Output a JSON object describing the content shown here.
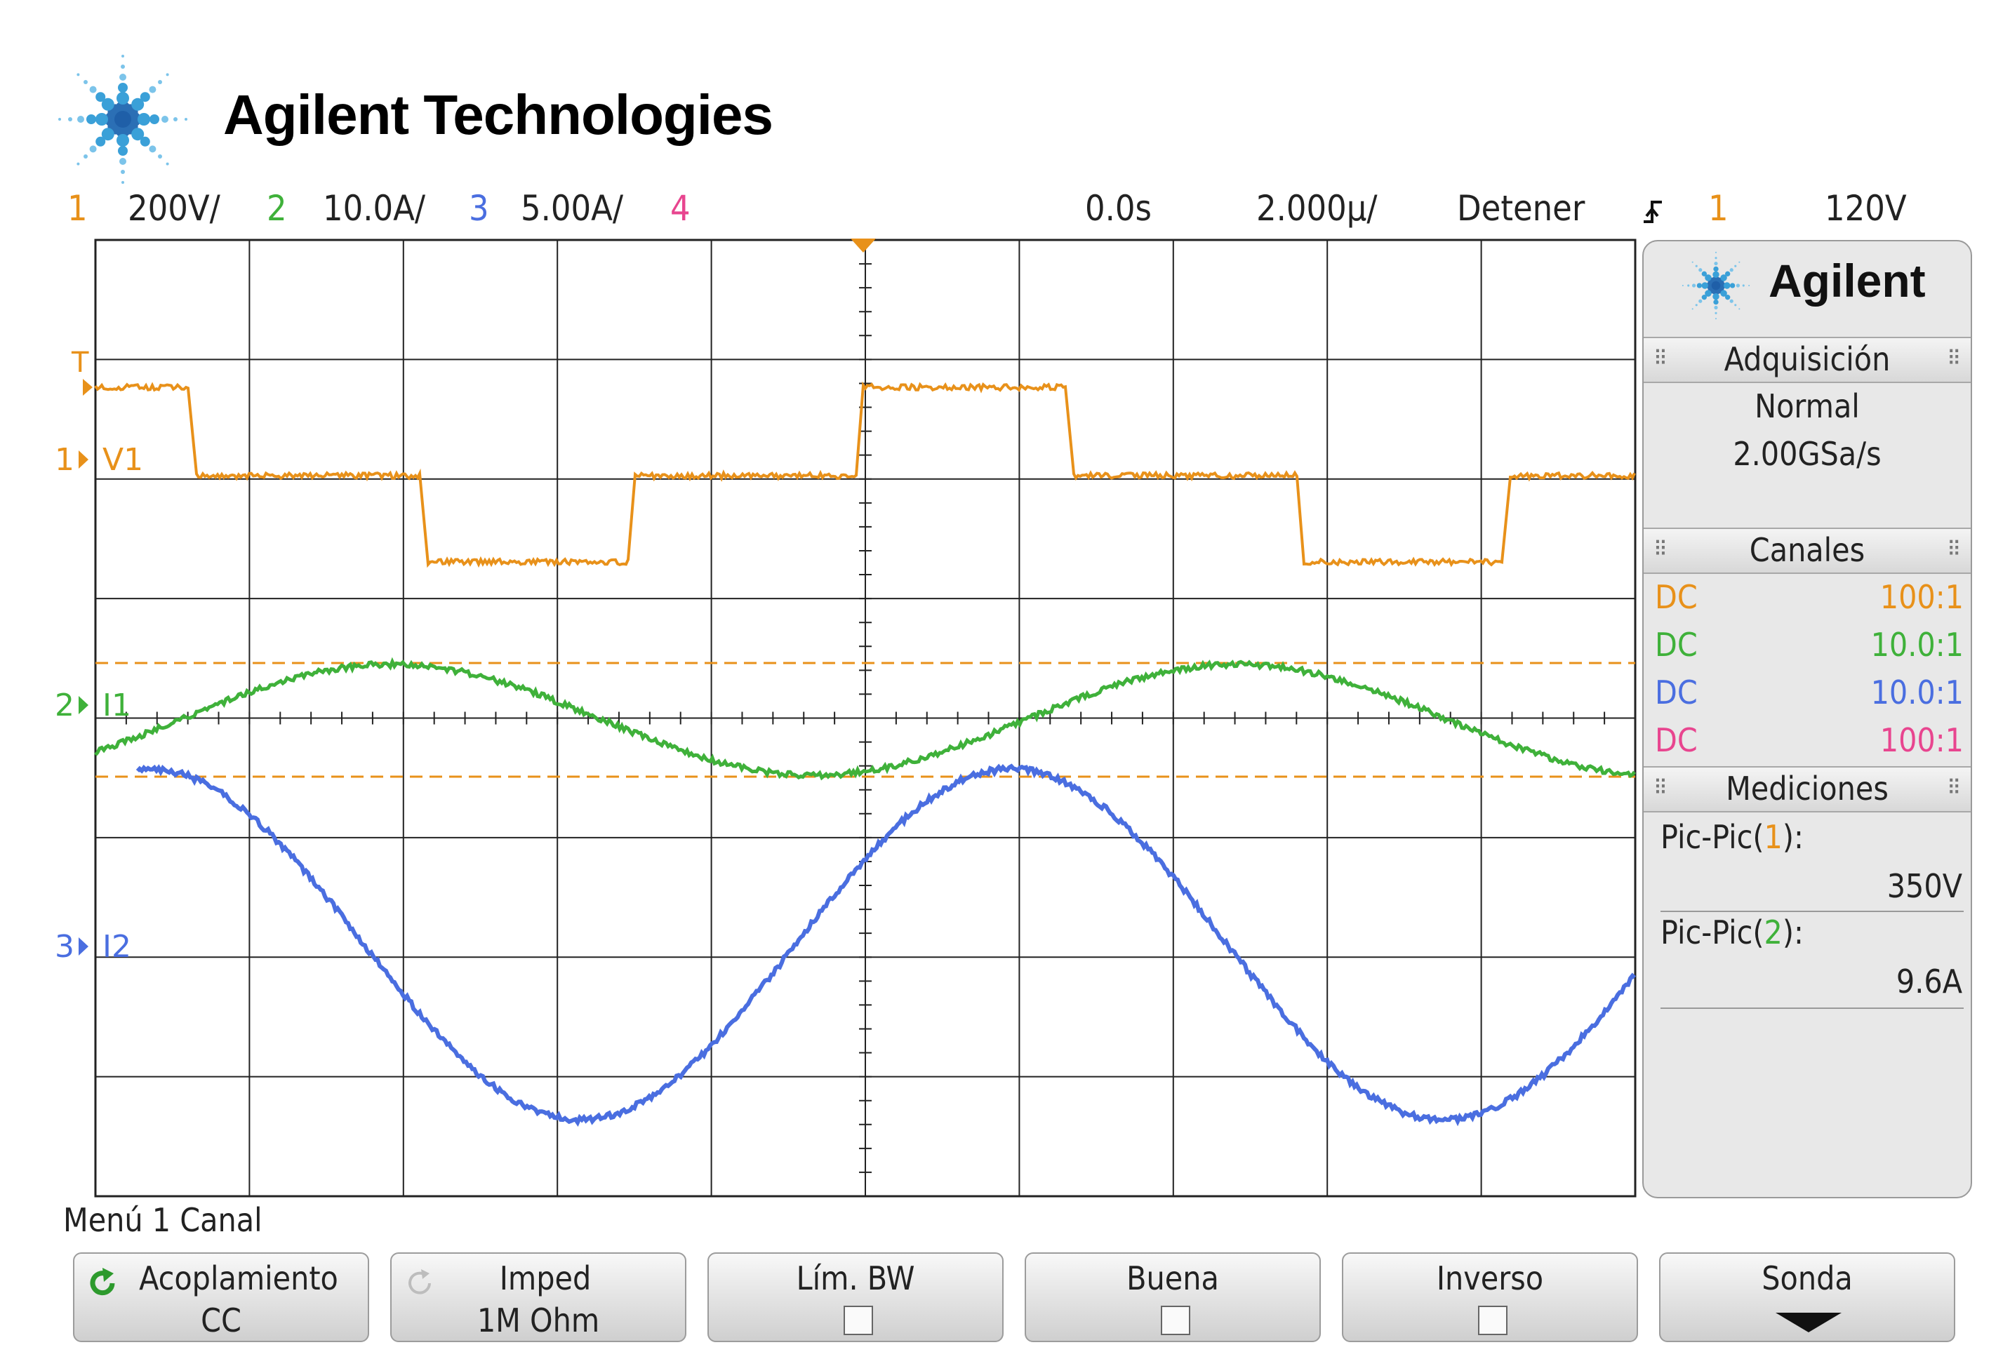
{
  "brand": {
    "name": "Agilent Technologies",
    "short": "Agilent"
  },
  "header": {
    "channels": [
      {
        "num": "1",
        "scale": "200V/",
        "color": "#e8911a"
      },
      {
        "num": "2",
        "scale": "10.0A/",
        "color": "#3fb13a"
      },
      {
        "num": "3",
        "scale": "5.00A/",
        "color": "#4a6ee0"
      },
      {
        "num": "4",
        "scale": "",
        "color": "#e8458f"
      }
    ],
    "delay": "0.0s",
    "timebase": "2.000µ/",
    "run_state": "Detener",
    "trigger_source": "1",
    "trigger_level": "120V"
  },
  "screen": {
    "trace_labels": {
      "ch1": "V1",
      "ch2": "I1",
      "ch3": "I2"
    },
    "marker_nums": {
      "ch1": "1",
      "ch2": "2",
      "ch3": "3"
    },
    "trigger_mark": "T"
  },
  "panel": {
    "acquisition_title": "Adquisición",
    "acquisition_mode": "Normal",
    "sample_rate": "2.00GSa/s",
    "channels_title": "Canales",
    "channels": [
      {
        "coupling": "DC",
        "probe": "100:1",
        "color": "#e8911a"
      },
      {
        "coupling": "DC",
        "probe": "10.0:1",
        "color": "#3fb13a"
      },
      {
        "coupling": "DC",
        "probe": "10.0:1",
        "color": "#4a6ee0"
      },
      {
        "coupling": "DC",
        "probe": "100:1",
        "color": "#e8458f"
      }
    ],
    "measurements_title": "Mediciones",
    "measurements": [
      {
        "prefix": "Pic-Pic(",
        "channel": "1",
        "suffix": "):",
        "value": "350V",
        "color": "#e8911a"
      },
      {
        "prefix": "Pic-Pic(",
        "channel": "2",
        "suffix": "):",
        "value": "9.6A",
        "color": "#3fb13a"
      }
    ]
  },
  "menu": {
    "title": "Menú 1 Canal",
    "softkeys": [
      {
        "label": "Acoplamiento",
        "value": "CC"
      },
      {
        "label": "Imped",
        "value": "1M Ohm"
      },
      {
        "label": "Lím. BW",
        "value": ""
      },
      {
        "label": "Buena",
        "value": ""
      },
      {
        "label": "Inverso",
        "value": ""
      },
      {
        "label": "Sonda",
        "value": ""
      }
    ]
  },
  "icons": {
    "logo": "agilent-spark-icon",
    "refresh": "refresh-icon",
    "trigger_edge": "rising-edge-icon",
    "down_arrow": "down-arrow-icon"
  }
}
